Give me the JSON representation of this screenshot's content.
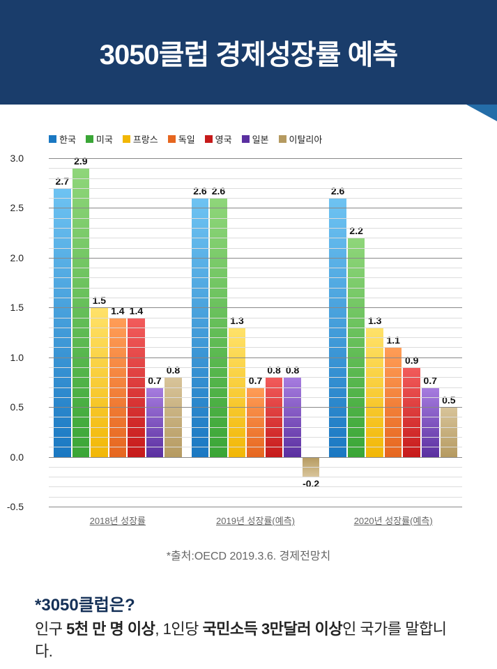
{
  "header": {
    "title": "3050클럽 경제성장률 예측",
    "bg_color": "#1a3d6b",
    "accent_color": "#246da8",
    "title_color": "#ffffff",
    "title_fontsize": 40
  },
  "chart": {
    "type": "bar",
    "ylim": [
      -0.5,
      3.0
    ],
    "ytick_step": 0.5,
    "yticks": [
      -0.5,
      0.0,
      0.5,
      1.0,
      1.5,
      2.0,
      2.5,
      3.0
    ],
    "minor_tick_count": 5,
    "grid_major_color": "#888888",
    "grid_minor_color": "#dcdcdc",
    "label_fontsize": 14,
    "series": [
      {
        "name": "한국",
        "color_top": "#6ec3f2",
        "color_bot": "#1a78c2"
      },
      {
        "name": "미국",
        "color_top": "#8fd67a",
        "color_bot": "#3aa636"
      },
      {
        "name": "프랑스",
        "color_top": "#ffe26a",
        "color_bot": "#f2b705"
      },
      {
        "name": "독일",
        "color_top": "#ff9d57",
        "color_bot": "#e6661f"
      },
      {
        "name": "영국",
        "color_top": "#f25c5c",
        "color_bot": "#c61a1a"
      },
      {
        "name": "일본",
        "color_top": "#a77de0",
        "color_bot": "#5a2fa0"
      },
      {
        "name": "이탈리아",
        "color_top": "#d8c49a",
        "color_bot": "#b59a60"
      }
    ],
    "groups": [
      {
        "label": "2018년 성장률",
        "values": [
          2.7,
          2.9,
          1.5,
          1.4,
          1.4,
          0.7,
          0.8
        ]
      },
      {
        "label": "2019년 성장률(예측)",
        "values": [
          2.6,
          2.6,
          1.3,
          0.7,
          0.8,
          0.8,
          -0.2
        ]
      },
      {
        "label": "2020년 성장률(예측)",
        "values": [
          2.6,
          2.2,
          1.3,
          1.1,
          0.9,
          0.7,
          0.5
        ]
      }
    ]
  },
  "source": "*출처:OECD 2019.3.6. 경제전망치",
  "footer": {
    "question": "*3050클럽은?",
    "answer_parts": [
      "인구 ",
      "5천 만 명 이상",
      ", 1인당 ",
      "국민소득 3만달러 이상",
      "인 국가를 말합니다."
    ]
  }
}
